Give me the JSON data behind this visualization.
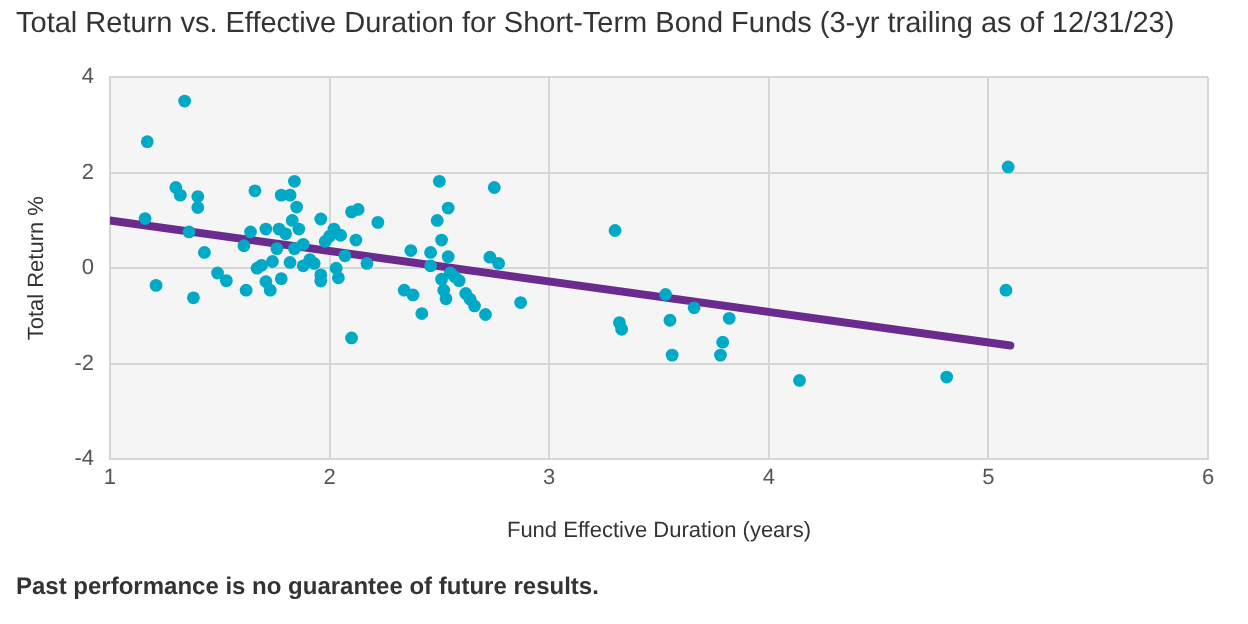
{
  "chart_data": {
    "type": "scatter",
    "title": "Total Return vs. Effective Duration for Short-Term Bond Funds (3-yr trailing as of 12/31/23)",
    "xlabel": "Fund Effective Duration (years)",
    "ylabel": "Total Return %",
    "xlim": [
      1,
      6
    ],
    "xticks": [
      1,
      2,
      3,
      4,
      5,
      6
    ],
    "ylim": [
      -4,
      4
    ],
    "yticks": [
      -4,
      -2,
      0,
      2,
      4
    ],
    "grid": true,
    "legend": false,
    "marker": "circle",
    "series": [
      {
        "type": "scatter",
        "color": "#00a9c6",
        "x": [
          1.17,
          1.34,
          1.16,
          1.21,
          1.3,
          1.32,
          1.4,
          1.4,
          1.36,
          1.43,
          1.38,
          1.49,
          1.53,
          1.62,
          1.61,
          1.64,
          1.66,
          1.67,
          1.69,
          1.71,
          1.73,
          1.71,
          1.74,
          1.76,
          1.78,
          1.78,
          1.77,
          1.8,
          1.82,
          1.84,
          1.83,
          1.85,
          1.82,
          1.84,
          1.86,
          1.88,
          1.88,
          1.91,
          1.93,
          1.96,
          1.96,
          1.96,
          1.98,
          2.0,
          2.02,
          2.03,
          2.04,
          2.05,
          2.07,
          2.1,
          2.1,
          2.13,
          2.12,
          2.17,
          2.22,
          2.34,
          2.37,
          2.38,
          2.42,
          2.46,
          2.46,
          2.49,
          2.5,
          2.51,
          2.51,
          2.52,
          2.53,
          2.54,
          2.54,
          2.55,
          2.57,
          2.59,
          2.62,
          2.64,
          2.66,
          2.71,
          2.73,
          2.75,
          2.77,
          2.87,
          3.3,
          3.32,
          3.33,
          3.53,
          3.55,
          3.56,
          3.66,
          3.82,
          3.79,
          3.78,
          4.14,
          4.81,
          5.09,
          5.08
        ],
        "values": [
          2.65,
          3.5,
          1.04,
          -0.36,
          1.69,
          1.53,
          1.5,
          1.27,
          0.76,
          0.33,
          -0.62,
          -0.1,
          -0.26,
          -0.46,
          0.47,
          0.76,
          1.62,
          0,
          0.06,
          -0.28,
          -0.46,
          0.82,
          0.14,
          0.41,
          1.53,
          -0.22,
          0.82,
          0.72,
          1.53,
          1.82,
          1.0,
          1.28,
          0.12,
          0.41,
          0.82,
          0.5,
          0.05,
          0.18,
          0.1,
          1.03,
          -0.27,
          -0.14,
          0.56,
          0.67,
          0.82,
          0,
          -0.2,
          0.69,
          0.26,
          -1.46,
          1.18,
          1.23,
          0.59,
          0.1,
          0.96,
          -0.46,
          0.37,
          -0.56,
          -0.95,
          0.05,
          0.33,
          1.0,
          1.82,
          0.59,
          -0.23,
          -0.46,
          -0.64,
          1.26,
          0.24,
          -0.1,
          -0.18,
          -0.26,
          -0.53,
          -0.65,
          -0.79,
          -0.97,
          0.23,
          1.69,
          0.1,
          -0.72,
          0.79,
          -1.14,
          -1.28,
          -0.55,
          -1.09,
          -1.82,
          -0.83,
          -1.05,
          -1.55,
          -1.82,
          -2.35,
          -2.28,
          2.12,
          -0.46
        ]
      },
      {
        "type": "line",
        "color": "#6a2a8e",
        "marker": "none",
        "x": [
          1,
          5.1
        ],
        "values": [
          1.0,
          -1.62
        ]
      }
    ],
    "annotations": [
      "Past performance is no guarantee of future results."
    ]
  }
}
